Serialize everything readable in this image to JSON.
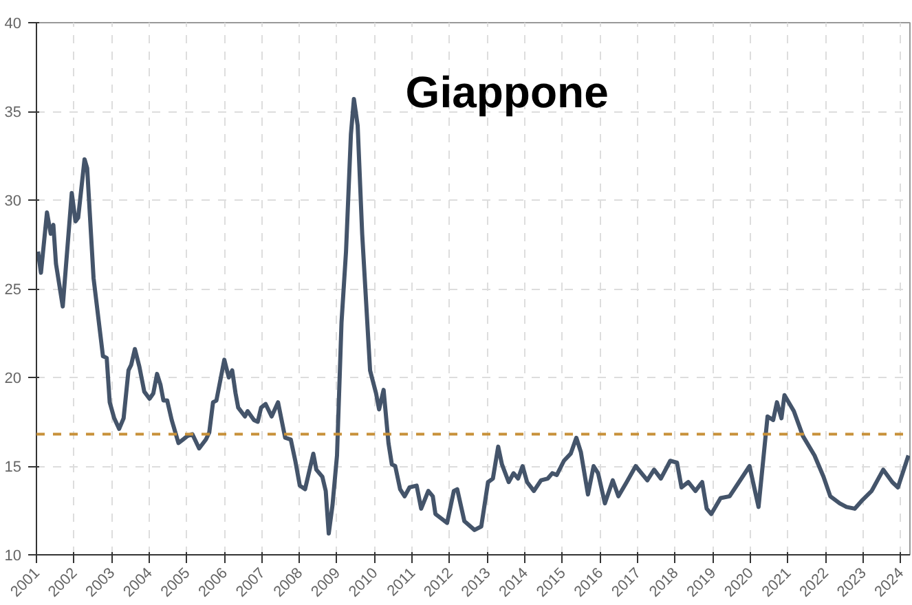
{
  "chart_data": {
    "type": "line",
    "title": "Giappone",
    "x": [
      2001.04,
      2001.12,
      2001.28,
      2001.38,
      2001.45,
      2001.52,
      2001.7,
      2001.94,
      2002.04,
      2002.11,
      2002.28,
      2002.35,
      2002.52,
      2002.77,
      2002.87,
      2002.95,
      2003.07,
      2003.2,
      2003.32,
      2003.45,
      2003.52,
      2003.62,
      2003.74,
      2003.87,
      2004.01,
      2004.11,
      2004.21,
      2004.3,
      2004.38,
      2004.48,
      2004.6,
      2004.78,
      2004.9,
      2005.02,
      2005.15,
      2005.33,
      2005.51,
      2005.6,
      2005.7,
      2005.79,
      2006.0,
      2006.12,
      2006.21,
      2006.3,
      2006.37,
      2006.55,
      2006.62,
      2006.79,
      2006.89,
      2006.98,
      2007.1,
      2007.26,
      2007.43,
      2007.62,
      2007.77,
      2007.89,
      2008.01,
      2008.15,
      2008.37,
      2008.45,
      2008.61,
      2008.7,
      2008.78,
      2008.88,
      2009.0,
      2009.12,
      2009.24,
      2009.37,
      2009.45,
      2009.55,
      2009.67,
      2009.88,
      2010.04,
      2010.12,
      2010.24,
      2010.37,
      2010.46,
      2010.55,
      2010.68,
      2010.8,
      2010.93,
      2011.12,
      2011.24,
      2011.43,
      2011.55,
      2011.62,
      2011.93,
      2012.11,
      2012.2,
      2012.39,
      2012.66,
      2012.84,
      2013.02,
      2013.15,
      2013.29,
      2013.39,
      2013.57,
      2013.7,
      2013.82,
      2013.94,
      2014.06,
      2014.24,
      2014.43,
      2014.61,
      2014.73,
      2014.85,
      2015.04,
      2015.22,
      2015.37,
      2015.49,
      2015.68,
      2015.83,
      2015.95,
      2016.13,
      2016.34,
      2016.49,
      2016.71,
      2016.95,
      2017.26,
      2017.44,
      2017.62,
      2017.87,
      2018.05,
      2018.17,
      2018.35,
      2018.54,
      2018.72,
      2018.84,
      2018.96,
      2019.21,
      2019.45,
      2019.7,
      2019.98,
      2020.22,
      2020.46,
      2020.61,
      2020.71,
      2020.83,
      2020.91,
      2021.16,
      2021.4,
      2021.71,
      2021.95,
      2022.13,
      2022.38,
      2022.56,
      2022.78,
      2022.99,
      2023.23,
      2023.54,
      2023.78,
      2023.93,
      2024.21
    ],
    "series": [
      {
        "color": "#44546a",
        "values": [
          27.1,
          25.9,
          29.3,
          28.1,
          28.6,
          26.4,
          24.0,
          30.4,
          28.8,
          29.0,
          32.3,
          31.8,
          25.6,
          21.2,
          21.1,
          18.6,
          17.7,
          17.1,
          17.7,
          20.4,
          20.7,
          21.6,
          20.6,
          19.2,
          18.8,
          19.1,
          20.2,
          19.6,
          18.7,
          18.7,
          17.6,
          16.3,
          16.5,
          16.7,
          16.8,
          16.0,
          16.5,
          16.9,
          18.6,
          18.7,
          21.0,
          20.0,
          20.4,
          19.1,
          18.3,
          17.8,
          18.1,
          17.6,
          17.5,
          18.3,
          18.5,
          17.8,
          18.6,
          16.6,
          16.5,
          15.3,
          13.9,
          13.7,
          15.7,
          14.8,
          14.4,
          13.6,
          11.2,
          12.8,
          15.6,
          23.1,
          27.1,
          33.7,
          35.7,
          34.2,
          28.1,
          20.4,
          19.1,
          18.2,
          19.3,
          16.3,
          15.1,
          15.0,
          13.7,
          13.3,
          13.8,
          13.9,
          12.6,
          13.6,
          13.3,
          12.3,
          11.8,
          13.6,
          13.7,
          11.9,
          11.4,
          11.6,
          14.1,
          14.3,
          16.1,
          15.1,
          14.1,
          14.6,
          14.3,
          15.0,
          14.1,
          13.6,
          14.2,
          14.3,
          14.6,
          14.5,
          15.3,
          15.7,
          16.6,
          15.8,
          13.4,
          15.0,
          14.6,
          12.9,
          14.2,
          13.3,
          14.1,
          15.0,
          14.2,
          14.8,
          14.3,
          15.3,
          15.2,
          13.8,
          14.1,
          13.6,
          14.1,
          12.6,
          12.3,
          13.2,
          13.3,
          14.1,
          15.0,
          12.7,
          17.8,
          17.6,
          18.6,
          17.7,
          19.0,
          18.1,
          16.7,
          15.6,
          14.4,
          13.3,
          12.9,
          12.7,
          12.6,
          13.1,
          13.6,
          14.8,
          14.1,
          13.8,
          15.6
        ]
      }
    ],
    "xlim": [
      2001,
      2024.25
    ],
    "xticks": [
      2001,
      2002,
      2003,
      2004,
      2005,
      2006,
      2007,
      2008,
      2009,
      2010,
      2011,
      2012,
      2013,
      2014,
      2015,
      2016,
      2017,
      2018,
      2019,
      2020,
      2021,
      2022,
      2023,
      2024
    ],
    "ylim": [
      10,
      40
    ],
    "yticks": [
      10,
      15,
      20,
      25,
      30,
      35,
      40
    ],
    "ref_lines": [
      {
        "axis": "y",
        "value": 16.8,
        "color": "#c8913a",
        "line_style": "dashed"
      }
    ],
    "grid": true,
    "line_style": "solid",
    "marker": "none"
  }
}
